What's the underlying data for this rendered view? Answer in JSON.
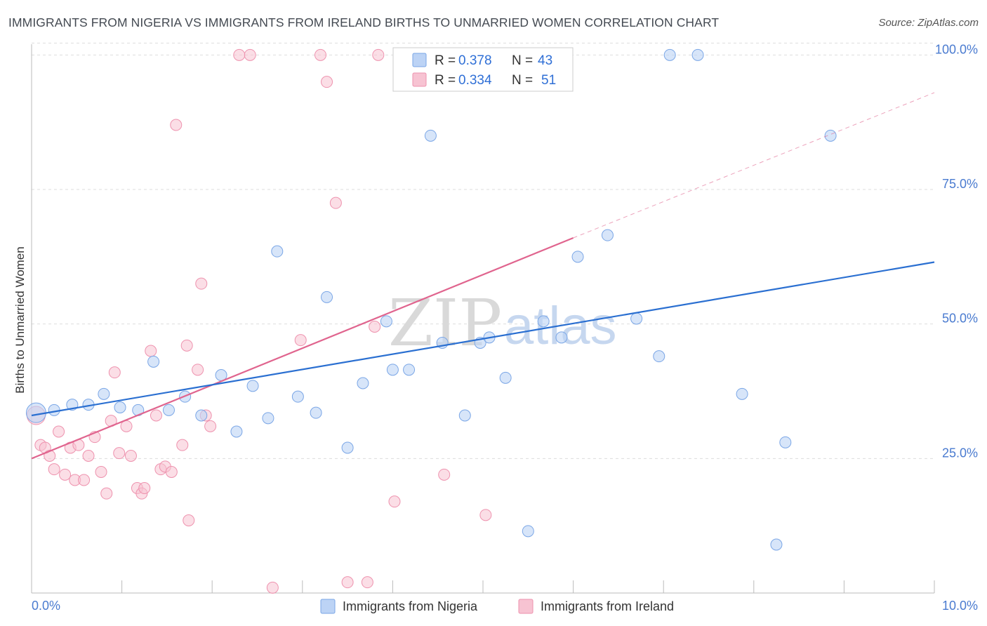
{
  "title": "IMMIGRANTS FROM NIGERIA VS IMMIGRANTS FROM IRELAND BIRTHS TO UNMARRIED WOMEN CORRELATION CHART",
  "source": "Source: ZipAtlas.com",
  "watermark": {
    "zip": "ZIP",
    "atlas": "atlas"
  },
  "colors": {
    "nigeria_fill": "#bcd3f5",
    "nigeria_stroke": "#7aa6e6",
    "nigeria_line": "#2a6fd1",
    "ireland_fill": "#f7c3d2",
    "ireland_stroke": "#ee92ae",
    "ireland_line": "#e0648e",
    "axis_text": "#4a7bd0",
    "grid": "#dddddd"
  },
  "legend": {
    "rows": [
      {
        "r_label": "R =",
        "r_value": "0.378",
        "n_label": "N =",
        "n_value": "43"
      },
      {
        "r_label": "R =",
        "r_value": "0.334",
        "n_label": "N =",
        "n_value": "51"
      }
    ]
  },
  "chart_data": {
    "type": "scatter",
    "title": "IMMIGRANTS FROM NIGERIA VS IMMIGRANTS FROM IRELAND BIRTHS TO UNMARRIED WOMEN CORRELATION CHART",
    "xlabel": "",
    "ylabel": "Births to Unmarried Women",
    "xlim": [
      0,
      10
    ],
    "ylim": [
      0,
      102
    ],
    "x_tick_labels": [
      "0.0%",
      "10.0%"
    ],
    "y_ticks": [
      25,
      50,
      75,
      100
    ],
    "y_tick_labels": [
      "25.0%",
      "50.0%",
      "75.0%",
      "100.0%"
    ],
    "grid": "horizontal dashed",
    "legend_position": "bottom-center",
    "series": [
      {
        "name": "Immigrants from Nigeria",
        "R": 0.378,
        "N": 43,
        "trend": {
          "x": [
            0,
            10
          ],
          "y": [
            33.0,
            61.5
          ]
        },
        "points": [
          [
            0.05,
            33.5
          ],
          [
            0.25,
            34.0
          ],
          [
            0.45,
            35.0
          ],
          [
            0.63,
            35.0
          ],
          [
            0.8,
            37.0
          ],
          [
            0.98,
            34.5
          ],
          [
            1.18,
            34.0
          ],
          [
            1.35,
            43.0
          ],
          [
            1.52,
            34.0
          ],
          [
            1.7,
            36.5
          ],
          [
            1.88,
            33.0
          ],
          [
            2.1,
            40.5
          ],
          [
            2.27,
            30.0
          ],
          [
            2.45,
            38.5
          ],
          [
            2.62,
            32.5
          ],
          [
            2.72,
            63.5
          ],
          [
            2.95,
            36.5
          ],
          [
            3.15,
            33.5
          ],
          [
            3.27,
            55.0
          ],
          [
            3.5,
            27.0
          ],
          [
            3.67,
            39.0
          ],
          [
            3.93,
            50.5
          ],
          [
            4.0,
            41.5
          ],
          [
            4.18,
            41.5
          ],
          [
            4.42,
            85.0
          ],
          [
            4.55,
            46.5
          ],
          [
            4.8,
            33.0
          ],
          [
            4.97,
            46.5
          ],
          [
            5.07,
            47.5
          ],
          [
            5.25,
            40.0
          ],
          [
            5.5,
            11.5
          ],
          [
            5.67,
            50.5
          ],
          [
            5.87,
            47.5
          ],
          [
            6.05,
            62.5
          ],
          [
            6.38,
            66.5
          ],
          [
            6.7,
            51.0
          ],
          [
            6.95,
            44.0
          ],
          [
            7.07,
            100.0
          ],
          [
            7.38,
            100.0
          ],
          [
            7.87,
            37.0
          ],
          [
            8.25,
            9.0
          ],
          [
            8.35,
            28.0
          ],
          [
            8.85,
            85.0
          ]
        ]
      },
      {
        "name": "Immigrants from Ireland",
        "R": 0.334,
        "N": 51,
        "trend": {
          "x": [
            0,
            6.0
          ],
          "y": [
            25.0,
            66.0
          ],
          "dashed_extension": {
            "x": [
              6.0,
              10.0
            ],
            "y": [
              66.0,
              93.0
            ]
          }
        },
        "points": [
          [
            0.05,
            33.0
          ],
          [
            0.1,
            27.5
          ],
          [
            0.15,
            27.0
          ],
          [
            0.2,
            25.5
          ],
          [
            0.25,
            23.0
          ],
          [
            0.3,
            30.0
          ],
          [
            0.37,
            22.0
          ],
          [
            0.43,
            27.0
          ],
          [
            0.48,
            21.0
          ],
          [
            0.52,
            27.5
          ],
          [
            0.58,
            21.0
          ],
          [
            0.63,
            25.5
          ],
          [
            0.7,
            29.0
          ],
          [
            0.77,
            22.5
          ],
          [
            0.83,
            18.5
          ],
          [
            0.88,
            32.0
          ],
          [
            0.92,
            41.0
          ],
          [
            0.97,
            26.0
          ],
          [
            1.05,
            31.0
          ],
          [
            1.1,
            25.5
          ],
          [
            1.17,
            19.5
          ],
          [
            1.22,
            18.5
          ],
          [
            1.25,
            19.5
          ],
          [
            1.32,
            45.0
          ],
          [
            1.38,
            33.0
          ],
          [
            1.43,
            23.0
          ],
          [
            1.48,
            23.5
          ],
          [
            1.55,
            22.5
          ],
          [
            1.6,
            87.0
          ],
          [
            1.67,
            27.5
          ],
          [
            1.72,
            46.0
          ],
          [
            1.74,
            13.5
          ],
          [
            1.84,
            41.5
          ],
          [
            1.88,
            57.5
          ],
          [
            1.93,
            33.0
          ],
          [
            1.98,
            31.0
          ],
          [
            2.3,
            100.0
          ],
          [
            2.42,
            100.0
          ],
          [
            2.67,
            1.0
          ],
          [
            2.98,
            47.0
          ],
          [
            3.2,
            100.0
          ],
          [
            3.27,
            95.0
          ],
          [
            3.37,
            72.5
          ],
          [
            3.5,
            2.0
          ],
          [
            3.72,
            2.0
          ],
          [
            3.8,
            49.5
          ],
          [
            3.84,
            100.0
          ],
          [
            4.02,
            17.0
          ],
          [
            4.5,
            100.0
          ],
          [
            4.57,
            22.0
          ],
          [
            5.03,
            14.5
          ]
        ]
      }
    ]
  }
}
